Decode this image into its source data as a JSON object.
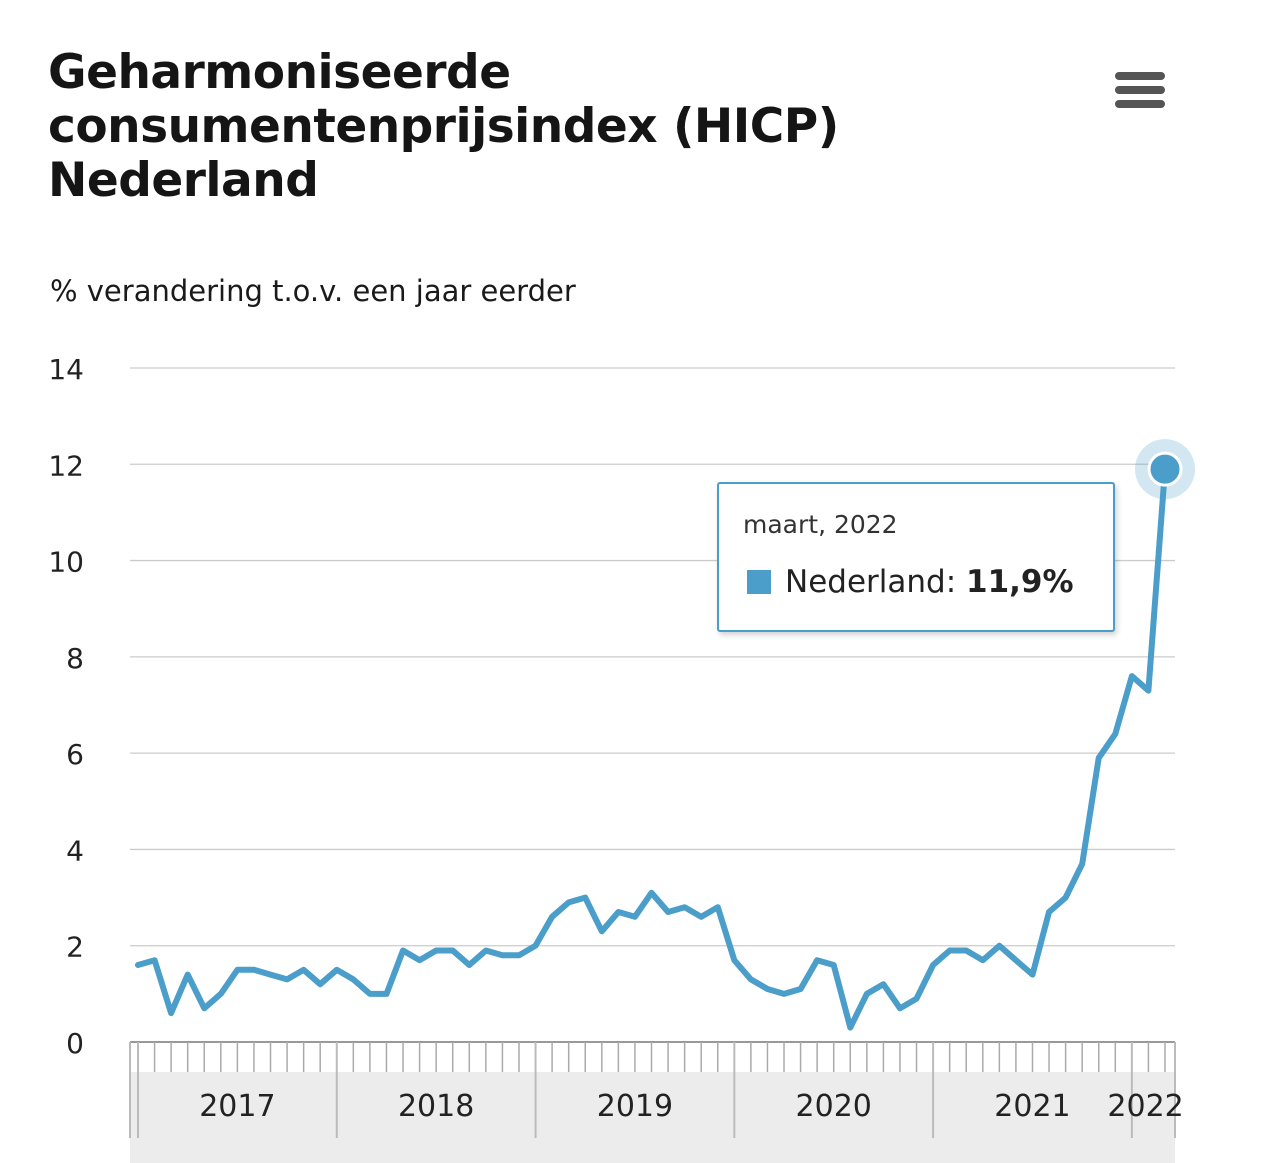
{
  "title_lines": [
    "Geharmoniseerde",
    "consumentenprijsindex (HICP)",
    "Nederland"
  ],
  "subtitle": "% verandering t.o.v. een jaar eerder",
  "menu_icon": "hamburger-menu-icon",
  "colors": {
    "line": "#4a9ec9",
    "grid": "#cccccc",
    "navigator": "#ececec"
  },
  "tooltip": {
    "date": "maart, 2022",
    "series": "Nederland",
    "separator": ":",
    "value": "11,9%"
  },
  "chart_data": {
    "type": "line",
    "ylim": [
      0,
      14
    ],
    "yticks": [
      "0",
      "2",
      "4",
      "6",
      "8",
      "10",
      "12",
      "14"
    ],
    "x_labels": [
      "2017",
      "2018",
      "2019",
      "2020",
      "2021",
      "2022"
    ],
    "x_start": "2017-01",
    "x_end": "2022-03",
    "grid": true,
    "series": [
      {
        "name": "Nederland",
        "x": [
          "2017-01",
          "2017-02",
          "2017-03",
          "2017-04",
          "2017-05",
          "2017-06",
          "2017-07",
          "2017-08",
          "2017-09",
          "2017-10",
          "2017-11",
          "2017-12",
          "2018-01",
          "2018-02",
          "2018-03",
          "2018-04",
          "2018-05",
          "2018-06",
          "2018-07",
          "2018-08",
          "2018-09",
          "2018-10",
          "2018-11",
          "2018-12",
          "2019-01",
          "2019-02",
          "2019-03",
          "2019-04",
          "2019-05",
          "2019-06",
          "2019-07",
          "2019-08",
          "2019-09",
          "2019-10",
          "2019-11",
          "2019-12",
          "2020-01",
          "2020-02",
          "2020-03",
          "2020-04",
          "2020-05",
          "2020-06",
          "2020-07",
          "2020-08",
          "2020-09",
          "2020-10",
          "2020-11",
          "2020-12",
          "2021-01",
          "2021-02",
          "2021-03",
          "2021-04",
          "2021-05",
          "2021-06",
          "2021-07",
          "2021-08",
          "2021-09",
          "2021-10",
          "2021-11",
          "2021-12",
          "2022-01",
          "2022-02",
          "2022-03"
        ],
        "values": [
          1.6,
          1.7,
          0.6,
          1.4,
          0.7,
          1.0,
          1.5,
          1.5,
          1.4,
          1.3,
          1.5,
          1.2,
          1.5,
          1.3,
          1.0,
          1.0,
          1.9,
          1.7,
          1.9,
          1.9,
          1.6,
          1.9,
          1.8,
          1.8,
          2.0,
          2.6,
          2.9,
          3.0,
          2.3,
          2.7,
          2.6,
          3.1,
          2.7,
          2.8,
          2.6,
          2.8,
          1.7,
          1.3,
          1.1,
          1.0,
          1.1,
          1.7,
          1.6,
          0.3,
          1.0,
          1.2,
          0.7,
          0.9,
          1.6,
          1.9,
          1.9,
          1.7,
          2.0,
          1.7,
          1.4,
          2.7,
          3.0,
          3.7,
          5.9,
          6.4,
          7.6,
          7.3,
          11.9
        ]
      }
    ],
    "highlight": {
      "x": "2022-03",
      "value": 11.9
    }
  }
}
